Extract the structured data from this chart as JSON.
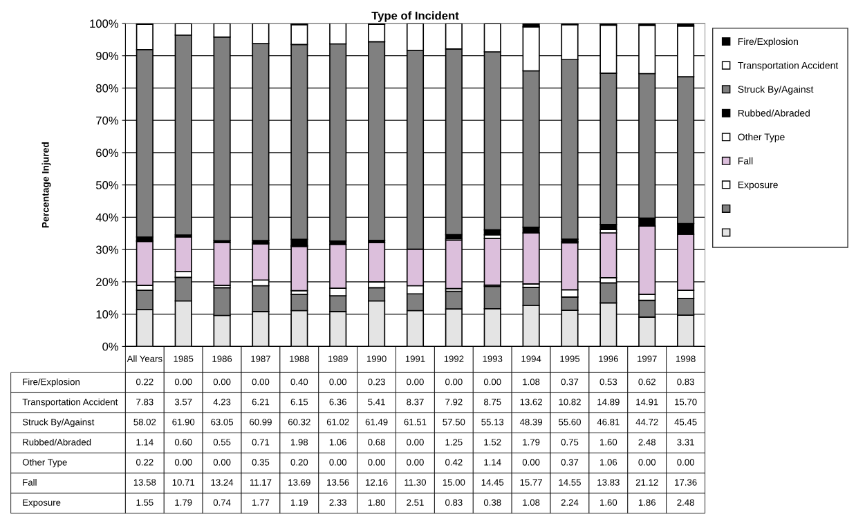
{
  "chart_data": {
    "type": "bar",
    "stacked": true,
    "title": "Type of Incident",
    "ylabel": "Percentage Injured",
    "categories": [
      "All Years",
      "1985",
      "1986",
      "1987",
      "1988",
      "1989",
      "1990",
      "1991",
      "1992",
      "1993",
      "1994",
      "1995",
      "1996",
      "1997",
      "1998"
    ],
    "series": [
      {
        "color": "#e4e4e4",
        "values": [
          11.4,
          14.1,
          9.6,
          10.8,
          11.1,
          10.8,
          14.1,
          11.1,
          11.6,
          11.7,
          12.7,
          11.2,
          13.5,
          9.1,
          9.7
        ]
      },
      {
        "color": "#808080",
        "values": [
          6.0,
          7.3,
          8.6,
          8.0,
          5.0,
          4.9,
          4.1,
          5.2,
          5.5,
          6.9,
          5.6,
          4.1,
          6.2,
          5.2,
          5.2
        ]
      },
      {
        "name": "Exposure",
        "color": "#ffffff",
        "values": [
          1.55,
          1.79,
          0.74,
          1.77,
          1.19,
          2.33,
          1.8,
          2.51,
          0.83,
          0.38,
          1.08,
          2.24,
          1.6,
          1.86,
          2.48
        ],
        "value_labels": [
          "1.55",
          "1.79",
          "0.74",
          "1.77",
          "1.19",
          "2.33",
          "1.80",
          "2.51",
          "0.83",
          "0.38",
          "1.08",
          "2.24",
          "1.60",
          "1.86",
          "2.48"
        ]
      },
      {
        "name": "Fall",
        "color": "#dcbfdc",
        "values": [
          13.58,
          10.71,
          13.24,
          11.17,
          13.69,
          13.56,
          12.16,
          11.3,
          15.0,
          14.45,
          15.77,
          14.55,
          13.83,
          21.12,
          17.36
        ],
        "value_labels": [
          "13.58",
          "10.71",
          "13.24",
          "11.17",
          "13.69",
          "13.56",
          "12.16",
          "11.30",
          "15.00",
          "14.45",
          "15.77",
          "14.55",
          "13.83",
          "21.12",
          "17.36"
        ]
      },
      {
        "name": "Other Type",
        "color": "#ffffff",
        "values": [
          0.22,
          0.0,
          0.0,
          0.35,
          0.2,
          0.0,
          0.0,
          0.0,
          0.42,
          1.14,
          0.0,
          0.37,
          1.06,
          0.0,
          0.0
        ],
        "value_labels": [
          "0.22",
          "0.00",
          "0.00",
          "0.35",
          "0.20",
          "0.00",
          "0.00",
          "0.00",
          "0.42",
          "1.14",
          "0.00",
          "0.37",
          "1.06",
          "0.00",
          "0.00"
        ]
      },
      {
        "name": "Rubbed/Abraded",
        "color": "#000000",
        "values": [
          1.14,
          0.6,
          0.55,
          0.71,
          1.98,
          1.06,
          0.68,
          0.0,
          1.25,
          1.52,
          1.79,
          0.75,
          1.6,
          2.48,
          3.31
        ],
        "value_labels": [
          "1.14",
          "0.60",
          "0.55",
          "0.71",
          "1.98",
          "1.06",
          "0.68",
          "0.00",
          "1.25",
          "1.52",
          "1.79",
          "0.75",
          "1.60",
          "2.48",
          "3.31"
        ]
      },
      {
        "name": "Struck By/Against",
        "color": "#808080",
        "values": [
          58.02,
          61.9,
          63.05,
          60.99,
          60.32,
          61.02,
          61.49,
          61.51,
          57.5,
          55.13,
          48.39,
          55.6,
          46.81,
          44.72,
          45.45
        ],
        "value_labels": [
          "58.02",
          "61.90",
          "63.05",
          "60.99",
          "60.32",
          "61.02",
          "61.49",
          "61.51",
          "57.50",
          "55.13",
          "48.39",
          "55.60",
          "46.81",
          "44.72",
          "45.45"
        ]
      },
      {
        "name": "Transportation Accident",
        "color": "#ffffff",
        "values": [
          7.83,
          3.57,
          4.23,
          6.21,
          6.15,
          6.36,
          5.41,
          8.37,
          7.92,
          8.75,
          13.62,
          10.82,
          14.89,
          14.91,
          15.7
        ],
        "value_labels": [
          "7.83",
          "3.57",
          "4.23",
          "6.21",
          "6.15",
          "6.36",
          "5.41",
          "8.37",
          "7.92",
          "8.75",
          "13.62",
          "10.82",
          "14.89",
          "14.91",
          "15.70"
        ]
      },
      {
        "name": "Fire/Explosion",
        "color": "#000000",
        "values": [
          0.22,
          0.0,
          0.0,
          0.0,
          0.4,
          0.0,
          0.23,
          0.0,
          0.0,
          0.0,
          1.08,
          0.37,
          0.53,
          0.62,
          0.83
        ],
        "value_labels": [
          "0.22",
          "0.00",
          "0.00",
          "0.00",
          "0.40",
          "0.00",
          "0.23",
          "0.00",
          "0.00",
          "0.00",
          "1.08",
          "0.37",
          "0.53",
          "0.62",
          "0.83"
        ]
      }
    ],
    "ylim": [
      0,
      100
    ],
    "yticks": [
      {
        "value": 0,
        "label": "0%"
      },
      {
        "value": 10,
        "label": "10%"
      },
      {
        "value": 20,
        "label": "20%"
      },
      {
        "value": 30,
        "label": "30%"
      },
      {
        "value": 40,
        "label": "40%"
      },
      {
        "value": 50,
        "label": "50%"
      },
      {
        "value": 60,
        "label": "60%"
      },
      {
        "value": 70,
        "label": "70%"
      },
      {
        "value": 80,
        "label": "80%"
      },
      {
        "value": 90,
        "label": "90%"
      },
      {
        "value": 100,
        "label": "100%"
      }
    ],
    "grid": "y",
    "legend": "right"
  }
}
